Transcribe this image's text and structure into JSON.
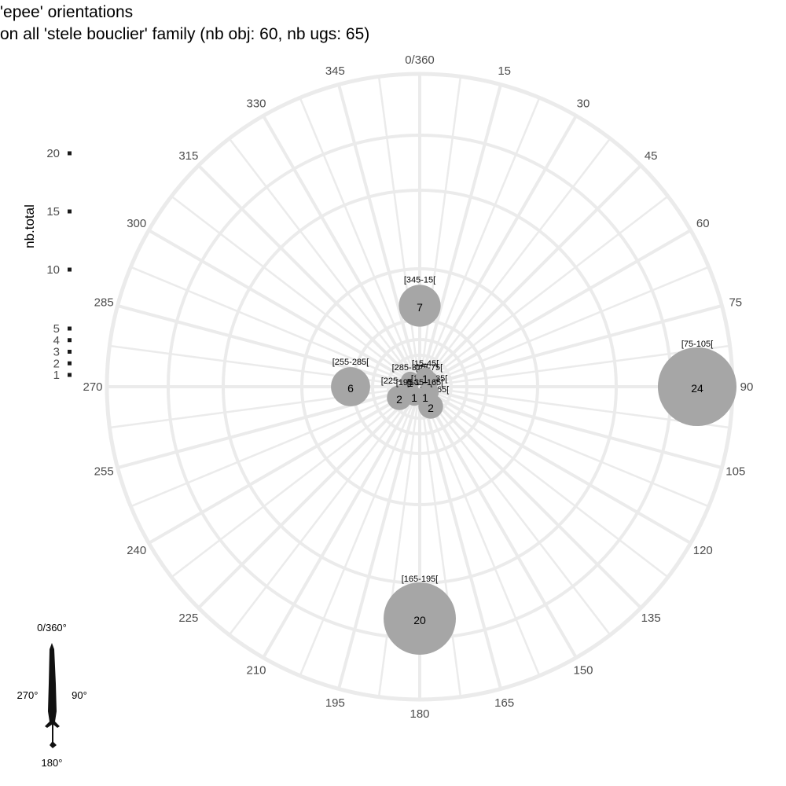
{
  "chart_data": {
    "type": "scatter",
    "coordinate_system": "polar",
    "title": "'epee' orientations",
    "subtitle": "on all 'stele bouclier' family (nb obj: 60, nb ugs: 65)",
    "ylabel": "nb.total",
    "angle_ticks": [
      "0/360",
      "15",
      "30",
      "45",
      "60",
      "75",
      "90",
      "105",
      "120",
      "135",
      "150",
      "165",
      "180",
      "195",
      "210",
      "225",
      "240",
      "255",
      "270",
      "285",
      "300",
      "315",
      "330",
      "345"
    ],
    "angle_tick_values": [
      0,
      15,
      30,
      45,
      60,
      75,
      90,
      105,
      120,
      135,
      150,
      165,
      180,
      195,
      210,
      225,
      240,
      255,
      270,
      285,
      300,
      315,
      330,
      345
    ],
    "size_ticks": [
      "1",
      "2",
      "3",
      "4",
      "5",
      "10",
      "15",
      "20"
    ],
    "size_tick_values": [
      1,
      2,
      3,
      4,
      5,
      10,
      15,
      20
    ],
    "radial_range": [
      0,
      24
    ],
    "series": [
      {
        "bin": "[345-15[",
        "angle": 0,
        "count": 7
      },
      {
        "bin": "[75-105[",
        "angle": 90,
        "count": 24
      },
      {
        "bin": "[165-195[",
        "angle": 180,
        "count": 20
      },
      {
        "bin": "[255-285[",
        "angle": 270,
        "count": 6
      },
      {
        "bin": "[225-255[",
        "angle": 240,
        "count": 2
      },
      {
        "bin": "[135-165[",
        "angle": 150,
        "count": 2
      },
      {
        "bin": "[285-315[",
        "angle": 300,
        "count": 1
      },
      {
        "bin": "[45-75[",
        "angle": 60,
        "count": 1
      },
      {
        "bin": "[105-135[",
        "angle": 120,
        "count": 1
      },
      {
        "bin": "[195-225[",
        "angle": 210,
        "count": 1
      },
      {
        "bin": "[15-45[",
        "angle": 30,
        "count": 1
      },
      {
        "bin": "[135-165[",
        "angle": 150,
        "count": 1
      }
    ],
    "grid": true,
    "legend_position": "left",
    "colors": {
      "point": "#a6a6a6",
      "grid": "#ebebeb",
      "text": "#4d4d4d"
    }
  },
  "inset": {
    "top": "0/360°",
    "left": "270°",
    "right": "90°",
    "bottom": "180°",
    "icon": "sword-icon"
  }
}
